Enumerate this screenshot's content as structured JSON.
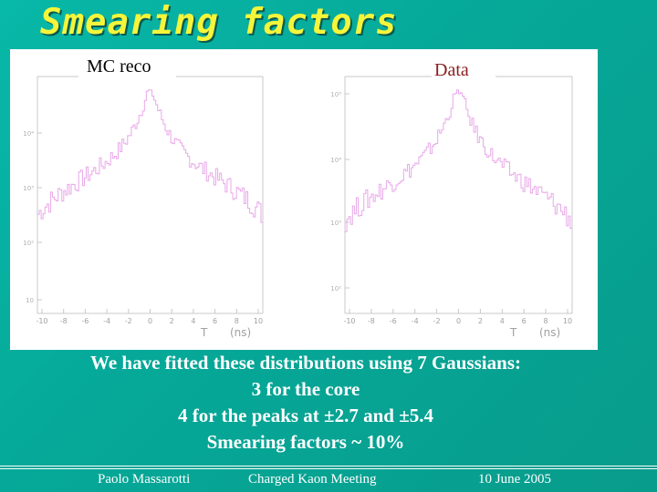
{
  "slide": {
    "title": "Smearing factors",
    "panels": [
      {
        "label": "MC reco",
        "y_ticks": [
          "10⁴",
          "10³",
          "10²",
          "10"
        ],
        "x_ticks": [
          "-10",
          "-8",
          "-6",
          "-4",
          "-2",
          "0",
          "2",
          "4",
          "6",
          "8",
          "10"
        ],
        "x_axis_label": "T",
        "x_axis_unit": "(ns)"
      },
      {
        "label": "Data",
        "y_ticks": [
          "10⁵",
          "10⁴",
          "10³",
          "10²"
        ],
        "x_ticks": [
          "-10",
          "-8",
          "-6",
          "-4",
          "-2",
          "0",
          "2",
          "4",
          "6",
          "8",
          "10"
        ],
        "x_axis_label": "T",
        "x_axis_unit": "(ns)"
      }
    ],
    "body_lines": [
      "We have fitted these distributions using 7 Gaussians:",
      "3 for the core",
      "4 for the peaks at ±2.7 and ±5.4",
      "Smearing factors ~ 10%"
    ],
    "footer": {
      "author": "Paolo Massarotti",
      "meeting": "Charged Kaon Meeting",
      "date": "10 June 2005"
    }
  },
  "colors": {
    "background": "#06a898",
    "title": "#f5f53a",
    "histogram": "#e8a8e8",
    "text": "#ffffff"
  }
}
